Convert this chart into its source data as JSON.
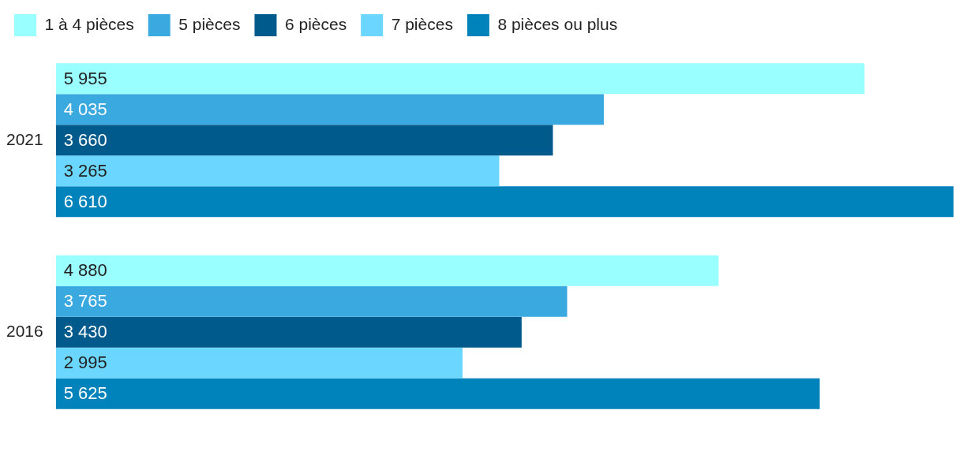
{
  "chart_data": {
    "type": "bar",
    "orientation": "horizontal",
    "categories": [
      "2021",
      "2016"
    ],
    "legend": "top left",
    "series": [
      {
        "name": "1 à 4 pièces",
        "color": "#99ffff",
        "values": [
          5955,
          4880
        ],
        "value_labels": [
          "5 955",
          "4 880"
        ]
      },
      {
        "name": "5 pièces",
        "color": "#3aa9e0",
        "values": [
          4035,
          3765
        ],
        "value_labels": [
          "4 035",
          "3 765"
        ]
      },
      {
        "name": "6 pièces",
        "color": "#005a8c",
        "values": [
          3660,
          3430
        ],
        "value_labels": [
          "3 660",
          "3 430"
        ]
      },
      {
        "name": "7 pièces",
        "color": "#6bd6ff",
        "values": [
          3265,
          2995
        ],
        "value_labels": [
          "3 265",
          "2 995"
        ]
      },
      {
        "name": "8 pièces ou plus",
        "color": "#0083ba",
        "values": [
          6610,
          5625
        ],
        "value_labels": [
          "6 610",
          "5 625"
        ]
      }
    ]
  }
}
